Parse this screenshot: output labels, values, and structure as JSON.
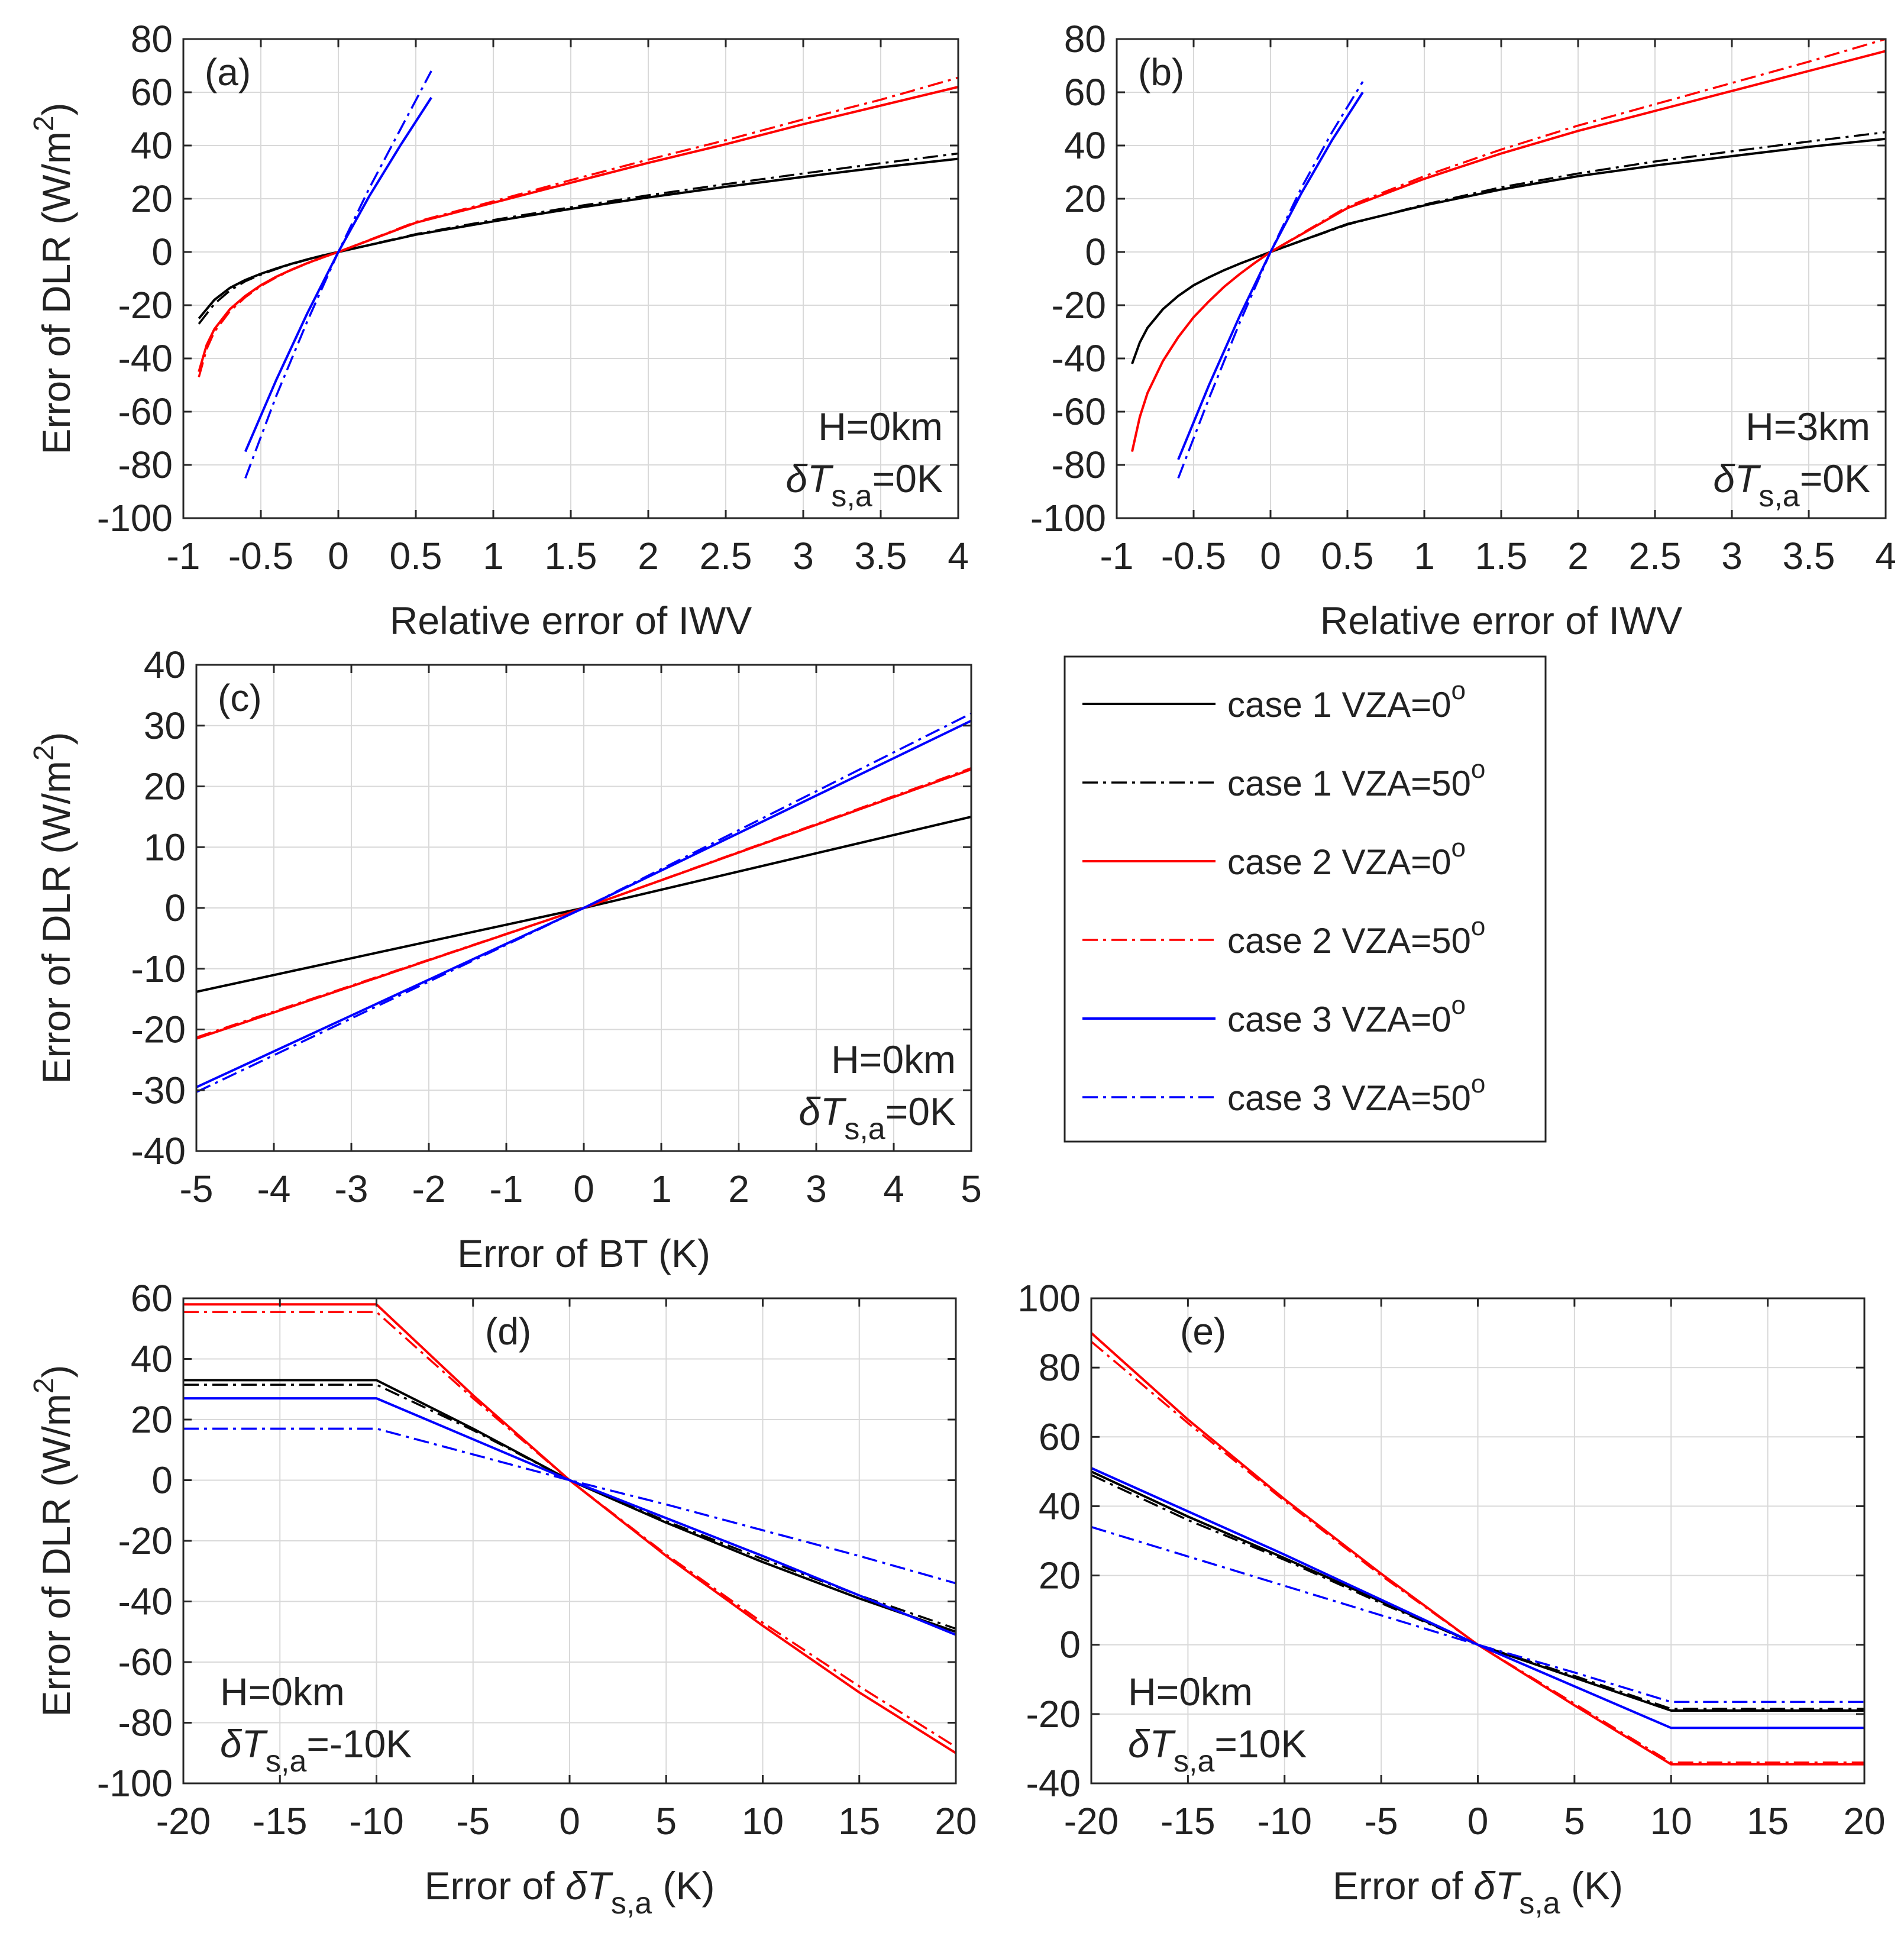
{
  "chart_data": [
    {
      "id": "a",
      "type": "line",
      "panel_label": "(a)",
      "xlabel": "Relative error of IWV",
      "ylabel": "Error of DLR (W/m2)",
      "xlim": [
        -1,
        4
      ],
      "ylim": [
        -100,
        80
      ],
      "xticks": [
        -1,
        -0.5,
        0,
        0.5,
        1,
        1.5,
        2,
        2.5,
        3,
        3.5,
        4
      ],
      "yticks": [
        -100,
        -80,
        -60,
        -40,
        -20,
        0,
        20,
        40,
        60,
        80
      ],
      "annotation": {
        "height": "H=0km",
        "delta_sym": "δT",
        "delta_sub": "s,a",
        "delta_val": "=0K",
        "position": "bottom-right"
      },
      "series": [
        {
          "name": "case 1 VZA=0°",
          "color": "#000000",
          "dash": "solid",
          "x": [
            -0.9,
            -0.8,
            -0.7,
            -0.6,
            -0.5,
            -0.4,
            -0.3,
            -0.2,
            -0.1,
            0,
            0.5,
            1,
            1.5,
            2,
            2.5,
            3,
            3.5,
            4
          ],
          "y": [
            -25,
            -18,
            -13.5,
            -10.5,
            -8.2,
            -6.2,
            -4.4,
            -2.8,
            -1.3,
            0,
            6.5,
            11.5,
            16.2,
            20.5,
            24.5,
            28.2,
            31.8,
            35
          ]
        },
        {
          "name": "case 1 VZA=50°",
          "color": "#000000",
          "dash": "dashdot",
          "x": [
            -0.9,
            -0.8,
            -0.7,
            -0.6,
            -0.5,
            -0.4,
            -0.3,
            -0.2,
            -0.1,
            0,
            0.5,
            1,
            1.5,
            2,
            2.5,
            3,
            3.5,
            4
          ],
          "y": [
            -27,
            -19.5,
            -14.5,
            -11,
            -8.5,
            -6.4,
            -4.5,
            -2.9,
            -1.4,
            0,
            6.7,
            12,
            16.8,
            21.3,
            25.5,
            29.5,
            33.3,
            37
          ]
        },
        {
          "name": "case 2 VZA=0°",
          "color": "#ff0000",
          "dash": "solid",
          "x": [
            -0.9,
            -0.85,
            -0.8,
            -0.7,
            -0.6,
            -0.5,
            -0.4,
            -0.3,
            -0.2,
            -0.1,
            0,
            0.5,
            1,
            1.5,
            2,
            2.5,
            3,
            3.5,
            4
          ],
          "y": [
            -45,
            -35,
            -29,
            -21.5,
            -16.5,
            -12.5,
            -9.3,
            -6.6,
            -4.2,
            -2,
            0,
            11,
            18.5,
            26,
            33.5,
            40.5,
            48,
            55,
            62
          ]
        },
        {
          "name": "case 2 VZA=50°",
          "color": "#ff0000",
          "dash": "dashdot",
          "x": [
            -0.9,
            -0.85,
            -0.8,
            -0.7,
            -0.6,
            -0.5,
            -0.4,
            -0.3,
            -0.2,
            -0.1,
            0,
            0.5,
            1,
            1.5,
            2,
            2.5,
            3,
            3.5,
            4
          ],
          "y": [
            -47,
            -36.5,
            -30,
            -22.3,
            -17,
            -12.8,
            -9.5,
            -6.7,
            -4.3,
            -2.1,
            0,
            11.3,
            19,
            27,
            34.7,
            42,
            49.8,
            57.2,
            65.5
          ]
        },
        {
          "name": "case 3 VZA=0°",
          "color": "#0000ff",
          "dash": "solid",
          "x": [
            -0.6,
            -0.4,
            -0.2,
            0,
            0.2,
            0.4,
            0.6
          ],
          "y": [
            -75,
            -48,
            -23,
            0,
            21,
            40,
            58
          ]
        },
        {
          "name": "case 3 VZA=50°",
          "color": "#0000ff",
          "dash": "dashdot",
          "x": [
            -0.6,
            -0.4,
            -0.2,
            0,
            0.2,
            0.4,
            0.6
          ],
          "y": [
            -85,
            -54,
            -26,
            0,
            24,
            46,
            68
          ]
        }
      ]
    },
    {
      "id": "b",
      "type": "line",
      "panel_label": "(b)",
      "xlabel": "Relative error of IWV",
      "ylabel": "",
      "xlim": [
        -1,
        4
      ],
      "ylim": [
        -100,
        80
      ],
      "xticks": [
        -1,
        -0.5,
        0,
        0.5,
        1,
        1.5,
        2,
        2.5,
        3,
        3.5,
        4
      ],
      "yticks": [
        -100,
        -80,
        -60,
        -40,
        -20,
        0,
        20,
        40,
        60,
        80
      ],
      "annotation": {
        "height": "H=3km",
        "delta_sym": "δT",
        "delta_sub": "s,a",
        "delta_val": "=0K",
        "position": "bottom-right"
      },
      "series": [
        {
          "name": "case 1 VZA=0°",
          "color": "#000000",
          "dash": "solid",
          "x": [
            -0.9,
            -0.85,
            -0.8,
            -0.7,
            -0.6,
            -0.5,
            -0.4,
            -0.3,
            -0.2,
            -0.1,
            0,
            0.5,
            1,
            1.5,
            2,
            2.5,
            3,
            3.5,
            4
          ],
          "y": [
            -42,
            -34,
            -28.5,
            -21.5,
            -16.5,
            -12.5,
            -9.5,
            -6.8,
            -4.4,
            -2.2,
            0,
            10.5,
            17.5,
            23.5,
            28.5,
            32.5,
            36,
            39.5,
            42.5
          ]
        },
        {
          "name": "case 1 VZA=50°",
          "color": "#000000",
          "dash": "dashdot",
          "x": [
            -0.9,
            -0.85,
            -0.8,
            -0.7,
            -0.6,
            -0.5,
            -0.4,
            -0.3,
            -0.2,
            -0.1,
            0,
            0.5,
            1,
            1.5,
            2,
            2.5,
            3,
            3.5,
            4
          ],
          "y": [
            -42,
            -34,
            -28.5,
            -21.5,
            -16.5,
            -12.5,
            -9.5,
            -6.8,
            -4.4,
            -2.2,
            0,
            10.3,
            17.8,
            24.3,
            29.5,
            34,
            37.8,
            41.5,
            45
          ]
        },
        {
          "name": "case 2 VZA=0°",
          "color": "#ff0000",
          "dash": "solid",
          "x": [
            -0.9,
            -0.85,
            -0.8,
            -0.7,
            -0.6,
            -0.5,
            -0.4,
            -0.3,
            -0.2,
            -0.1,
            0,
            0.5,
            1,
            1.5,
            2,
            2.5,
            3,
            3.5,
            4
          ],
          "y": [
            -75,
            -62,
            -53,
            -41,
            -32,
            -24.5,
            -18.5,
            -13,
            -8.3,
            -4,
            0,
            16.5,
            27.5,
            37,
            45.5,
            53,
            60.5,
            68,
            75.5
          ]
        },
        {
          "name": "case 2 VZA=50°",
          "color": "#ff0000",
          "dash": "dashdot",
          "x": [
            -0.9,
            -0.85,
            -0.8,
            -0.7,
            -0.6,
            -0.5,
            -0.4,
            -0.3,
            -0.2,
            -0.1,
            0,
            0.5,
            1,
            1.5,
            2,
            2.5,
            3,
            3.5,
            4
          ],
          "y": [
            -75,
            -62,
            -53,
            -41,
            -32,
            -24.5,
            -18.5,
            -13,
            -8.3,
            -4,
            0,
            17,
            28.5,
            38.5,
            47.5,
            55.5,
            63.5,
            71.5,
            80
          ]
        },
        {
          "name": "case 3 VZA=0°",
          "color": "#0000ff",
          "dash": "solid",
          "x": [
            -0.6,
            -0.4,
            -0.2,
            0,
            0.2,
            0.4,
            0.6
          ],
          "y": [
            -78,
            -50,
            -24,
            0,
            22,
            42,
            60
          ]
        },
        {
          "name": "case 3 VZA=50°",
          "color": "#0000ff",
          "dash": "dashdot",
          "x": [
            -0.6,
            -0.4,
            -0.2,
            0,
            0.2,
            0.4,
            0.6
          ],
          "y": [
            -85,
            -55,
            -26.5,
            0,
            24,
            45,
            64
          ]
        }
      ]
    },
    {
      "id": "c",
      "type": "line",
      "panel_label": "(c)",
      "xlabel": "Error of BT (K)",
      "ylabel": "Error of DLR (W/m2)",
      "xlim": [
        -5,
        5
      ],
      "ylim": [
        -40,
        40
      ],
      "xticks": [
        -5,
        -4,
        -3,
        -2,
        -1,
        0,
        1,
        2,
        3,
        4,
        5
      ],
      "yticks": [
        -40,
        -30,
        -20,
        -10,
        0,
        10,
        20,
        30,
        40
      ],
      "annotation": {
        "height": "H=0km",
        "delta_sym": "δT",
        "delta_sub": "s,a",
        "delta_val": "=0K",
        "position": "bottom-right"
      },
      "series": [
        {
          "name": "case 1 VZA=0°",
          "color": "#000000",
          "dash": "solid",
          "x": [
            -5,
            0,
            5
          ],
          "y": [
            -13.8,
            0,
            15
          ]
        },
        {
          "name": "case 1 VZA=50°",
          "color": "#000000",
          "dash": "dashdot",
          "x": [
            -5,
            0,
            5
          ],
          "y": [
            -13.8,
            0,
            15
          ]
        },
        {
          "name": "case 2 VZA=0°",
          "color": "#ff0000",
          "dash": "solid",
          "x": [
            -5,
            0,
            5
          ],
          "y": [
            -21.5,
            0,
            22.8
          ]
        },
        {
          "name": "case 2 VZA=50°",
          "color": "#ff0000",
          "dash": "dashdot",
          "x": [
            -5,
            0,
            5
          ],
          "y": [
            -21.3,
            0,
            23
          ]
        },
        {
          "name": "case 3 VZA=0°",
          "color": "#0000ff",
          "dash": "solid",
          "x": [
            -5,
            0,
            5
          ],
          "y": [
            -29.5,
            0,
            30.8
          ]
        },
        {
          "name": "case 3 VZA=50°",
          "color": "#0000ff",
          "dash": "dashdot",
          "x": [
            -5,
            0,
            5
          ],
          "y": [
            -30.3,
            0,
            32
          ]
        }
      ]
    },
    {
      "id": "d",
      "type": "line",
      "panel_label": "(d)",
      "xlabel_pre": "Error of ",
      "xlabel_sym": "δT",
      "xlabel_sub": "s,a",
      "xlabel_post": " (K)",
      "ylabel": "Error of DLR (W/m2)",
      "xlim": [
        -20,
        20
      ],
      "ylim": [
        -100,
        60
      ],
      "xticks": [
        -20,
        -15,
        -10,
        -5,
        0,
        5,
        10,
        15,
        20
      ],
      "yticks": [
        -100,
        -80,
        -60,
        -40,
        -20,
        0,
        20,
        40,
        60
      ],
      "annotation": {
        "height": "H=0km",
        "delta_sym": "δT",
        "delta_sub": "s,a",
        "delta_val": "=-10K",
        "position": "bottom-left"
      },
      "series": [
        {
          "name": "case 1 VZA=0°",
          "color": "#000000",
          "dash": "solid",
          "x": [
            -20,
            -10,
            -5,
            0,
            5,
            10,
            15,
            20
          ],
          "y": [
            33,
            33,
            17,
            0,
            -14,
            -27,
            -39,
            -50
          ]
        },
        {
          "name": "case 1 VZA=50°",
          "color": "#000000",
          "dash": "dashdot",
          "x": [
            -20,
            -10,
            -5,
            0,
            5,
            10,
            15,
            20
          ],
          "y": [
            31.5,
            31.5,
            16.5,
            0,
            -13.5,
            -26,
            -38,
            -49
          ]
        },
        {
          "name": "case 2 VZA=0°",
          "color": "#ff0000",
          "dash": "solid",
          "x": [
            -20,
            -10,
            -5,
            0,
            5,
            10,
            15,
            20
          ],
          "y": [
            58,
            58,
            28,
            0,
            -25,
            -48,
            -70,
            -90
          ]
        },
        {
          "name": "case 2 VZA=50°",
          "color": "#ff0000",
          "dash": "dashdot",
          "x": [
            -20,
            -10,
            -5,
            0,
            5,
            10,
            15,
            20
          ],
          "y": [
            55.5,
            55.5,
            27,
            0,
            -24.5,
            -47,
            -68,
            -88
          ]
        },
        {
          "name": "case 3 VZA=0°",
          "color": "#0000ff",
          "dash": "solid",
          "x": [
            -20,
            -10,
            -5,
            0,
            5,
            10,
            15,
            20
          ],
          "y": [
            27,
            27,
            13.5,
            0,
            -12.5,
            -25,
            -38,
            -51
          ]
        },
        {
          "name": "case 3 VZA=50°",
          "color": "#0000ff",
          "dash": "dashdot",
          "x": [
            -20,
            -10,
            -5,
            0,
            5,
            10,
            15,
            20
          ],
          "y": [
            17,
            17,
            8.5,
            0,
            -8,
            -16.5,
            -25,
            -34
          ]
        }
      ]
    },
    {
      "id": "e",
      "type": "line",
      "panel_label": "(e)",
      "xlabel_pre": "Error of ",
      "xlabel_sym": "δT",
      "xlabel_sub": "s,a",
      "xlabel_post": " (K)",
      "ylabel": "",
      "xlim": [
        -20,
        20
      ],
      "ylim": [
        -40,
        100
      ],
      "xticks": [
        -20,
        -15,
        -10,
        -5,
        0,
        5,
        10,
        15,
        20
      ],
      "yticks": [
        -40,
        -20,
        0,
        20,
        40,
        60,
        80,
        100
      ],
      "annotation": {
        "height": "H=0km",
        "delta_sym": "δT",
        "delta_sub": "s,a",
        "delta_val": "=10K",
        "position": "bottom-left"
      },
      "series": [
        {
          "name": "case 1 VZA=0°",
          "color": "#000000",
          "dash": "solid",
          "x": [
            -20,
            -15,
            -10,
            -5,
            0,
            5,
            10,
            20
          ],
          "y": [
            50,
            37,
            25,
            12.5,
            0,
            -9.5,
            -19,
            -19
          ]
        },
        {
          "name": "case 1 VZA=50°",
          "color": "#000000",
          "dash": "dashdot",
          "x": [
            -20,
            -15,
            -10,
            -5,
            0,
            5,
            10,
            20
          ],
          "y": [
            49,
            36,
            24.5,
            12,
            0,
            -9,
            -18.5,
            -18.5
          ]
        },
        {
          "name": "case 2 VZA=0°",
          "color": "#ff0000",
          "dash": "solid",
          "x": [
            -20,
            -15,
            -10,
            -5,
            0,
            5,
            10,
            20
          ],
          "y": [
            90,
            65,
            42,
            20.5,
            0,
            -17.5,
            -34.5,
            -34.5
          ]
        },
        {
          "name": "case 2 VZA=50°",
          "color": "#ff0000",
          "dash": "dashdot",
          "x": [
            -20,
            -15,
            -10,
            -5,
            0,
            5,
            10,
            20
          ],
          "y": [
            87.5,
            64,
            41.5,
            20,
            0,
            -17,
            -34,
            -34
          ]
        },
        {
          "name": "case 3 VZA=0°",
          "color": "#0000ff",
          "dash": "solid",
          "x": [
            -20,
            -15,
            -10,
            -5,
            0,
            5,
            10,
            20
          ],
          "y": [
            51,
            38.5,
            26,
            13,
            0,
            -12,
            -24,
            -24
          ]
        },
        {
          "name": "case 3 VZA=50°",
          "color": "#0000ff",
          "dash": "dashdot",
          "x": [
            -20,
            -15,
            -10,
            -5,
            0,
            5,
            10,
            20
          ],
          "y": [
            34,
            25.5,
            17,
            8.5,
            0,
            -8,
            -16.5,
            -16.5
          ]
        }
      ]
    }
  ],
  "legend": {
    "placement": "right of panel (c)",
    "items": [
      {
        "label": "case 1 VZA=0",
        "sup": "o",
        "color": "#000000",
        "dash": "solid"
      },
      {
        "label": "case 1 VZA=50",
        "sup": "o",
        "color": "#000000",
        "dash": "dashdot"
      },
      {
        "label": "case 2 VZA=0",
        "sup": "o",
        "color": "#ff0000",
        "dash": "solid"
      },
      {
        "label": "case 2 VZA=50",
        "sup": "o",
        "color": "#ff0000",
        "dash": "dashdot"
      },
      {
        "label": "case 3 VZA=0",
        "sup": "o",
        "color": "#0000ff",
        "dash": "solid"
      },
      {
        "label": "case 3 VZA=50",
        "sup": "o",
        "color": "#0000ff",
        "dash": "dashdot"
      }
    ]
  },
  "labels": {
    "ylabel_main": "Error of DLR (W/m",
    "ylabel_sup": "2",
    "ylabel_close": ")"
  }
}
